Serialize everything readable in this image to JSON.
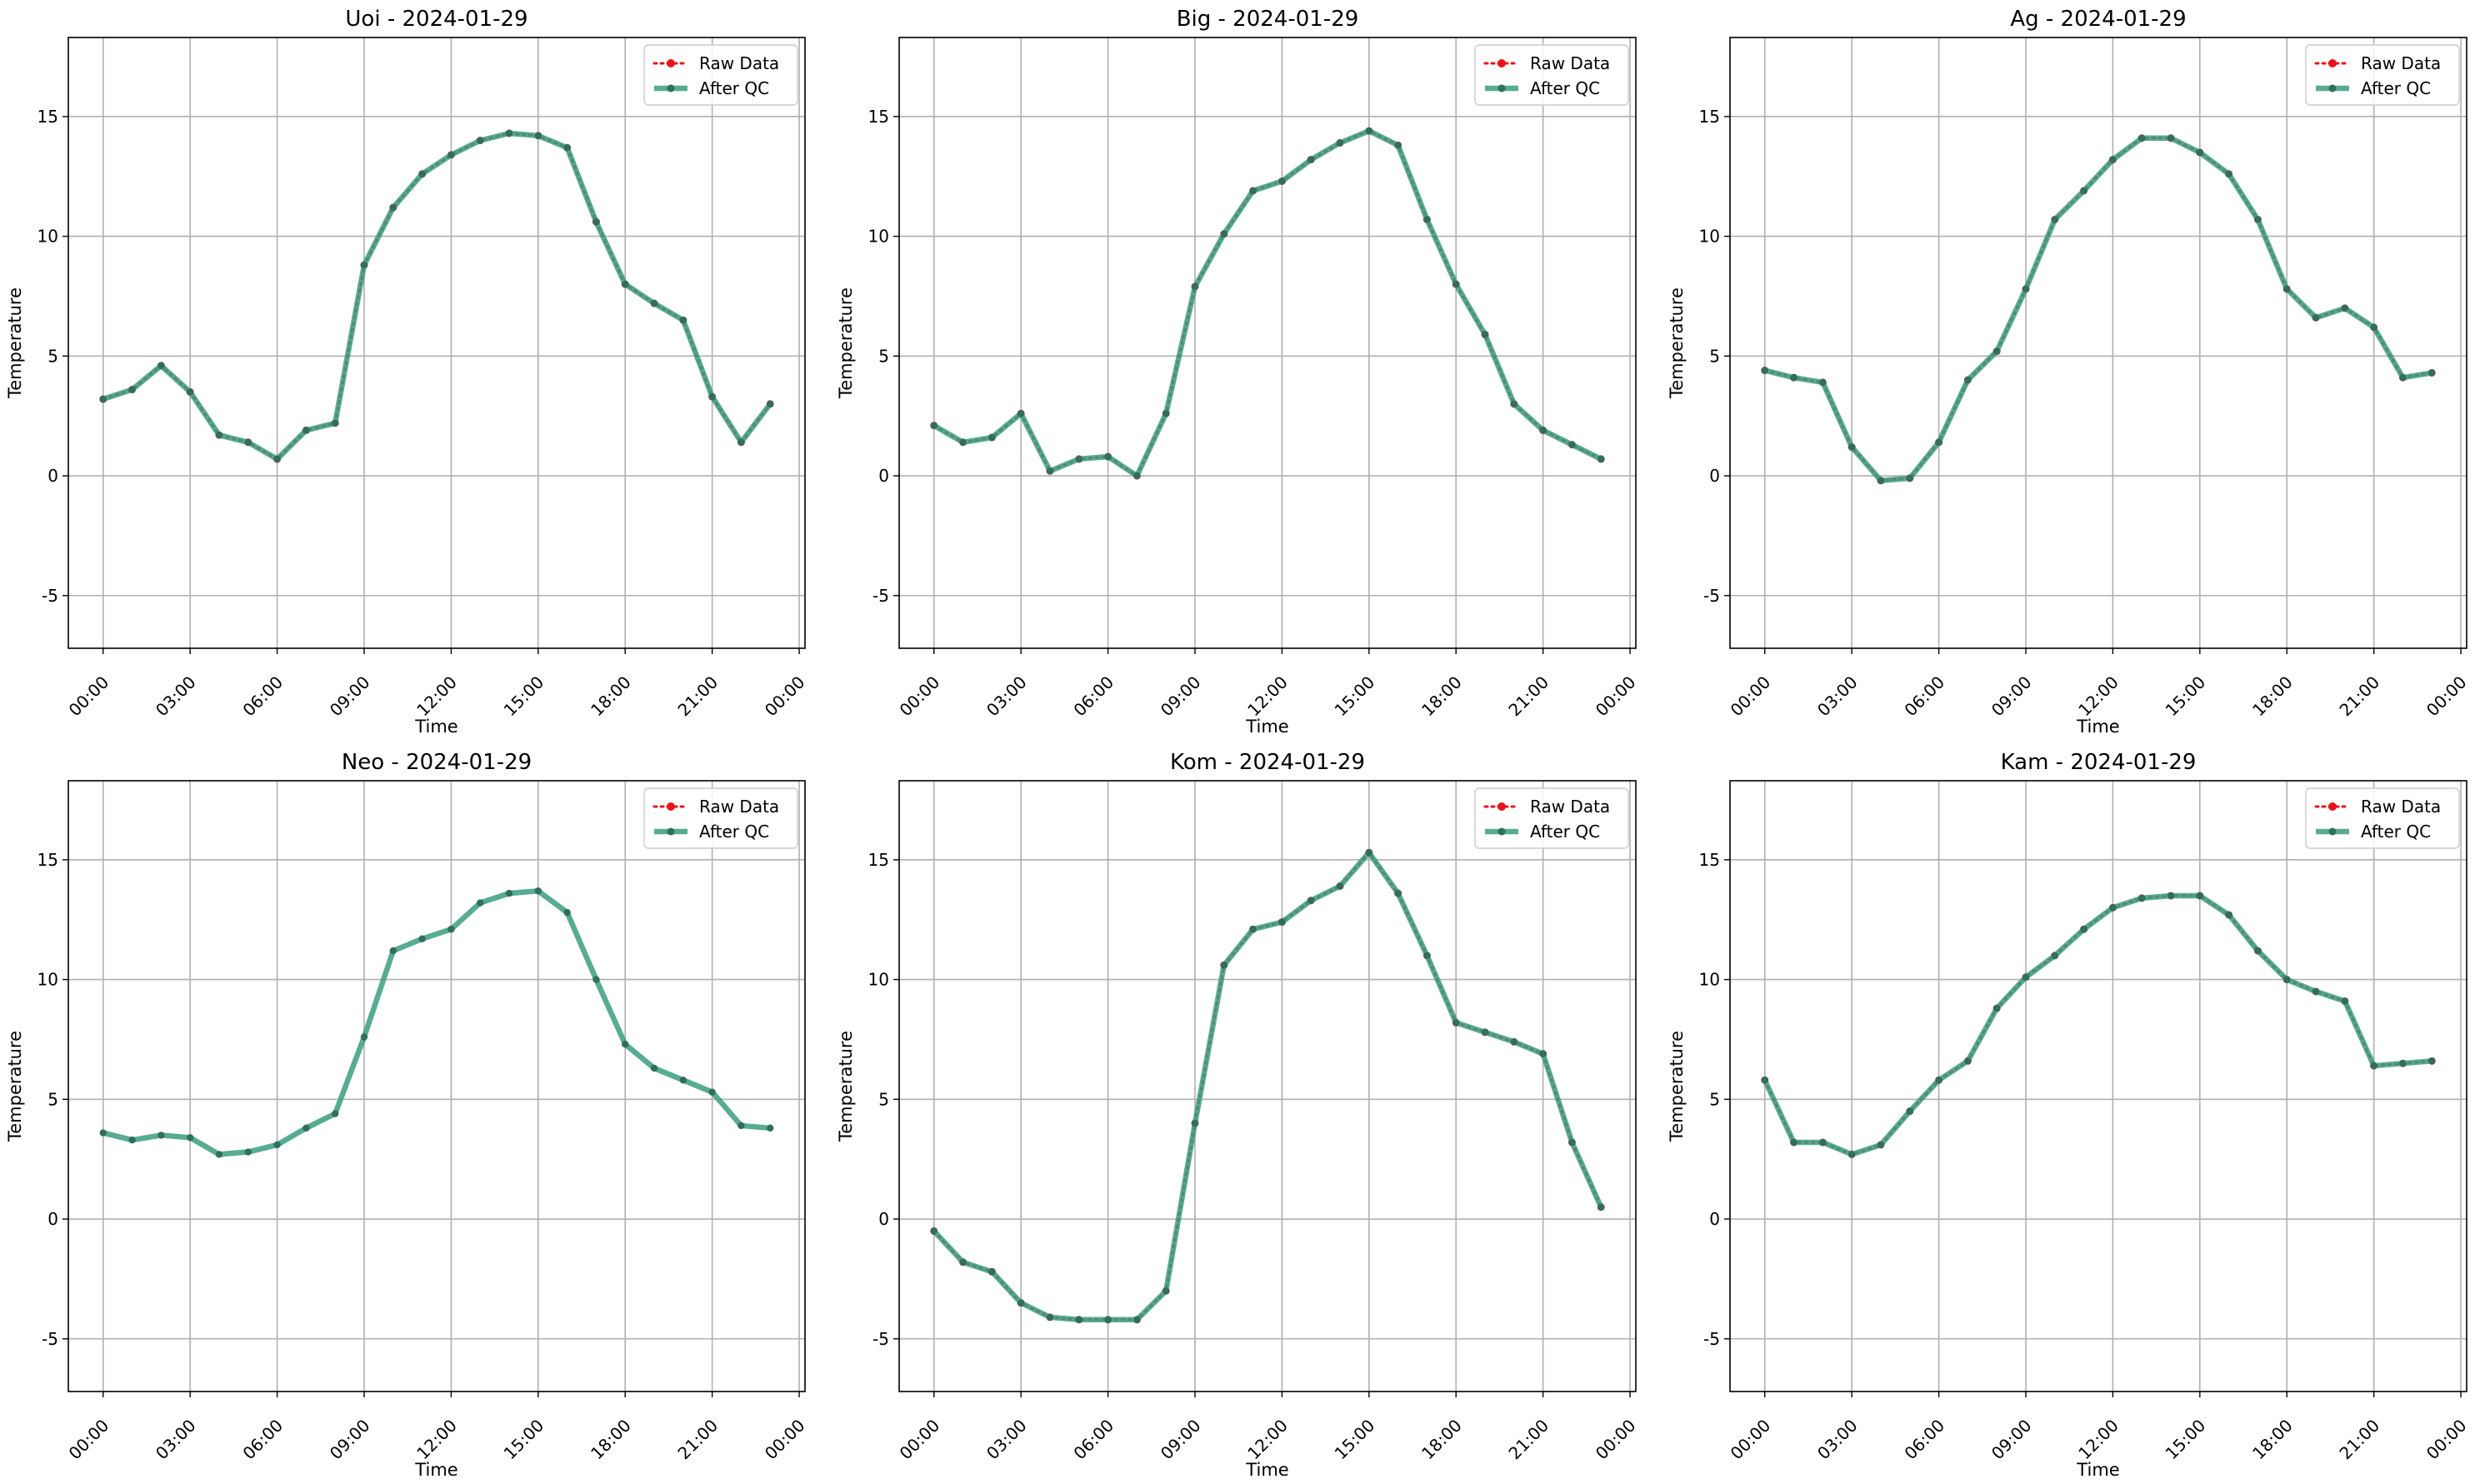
{
  "legend": {
    "raw_label": "Raw Data",
    "qc_label": "After QC",
    "placement": "upper-right"
  },
  "colors": {
    "raw": "#e8141b",
    "qc": "#3a9e7f",
    "qc_marker": "#2f6f5b",
    "grid": "#b0b0b0",
    "axis": "#000000"
  },
  "chart_data": [
    {
      "type": "line",
      "title": "Uoi - 2024-01-29",
      "xlabel": "Time",
      "ylabel": "Temperature",
      "xlim_hours": [
        -1.2,
        24.2
      ],
      "ylim": [
        -7.2,
        18.3
      ],
      "x_ticks": [
        "00:00",
        "03:00",
        "06:00",
        "09:00",
        "12:00",
        "15:00",
        "18:00",
        "21:00",
        "00:00"
      ],
      "y_ticks": [
        -5,
        0,
        5,
        10,
        15
      ],
      "grid": true,
      "legend_position": "upper-right",
      "raw_visible": true,
      "hours": [
        0,
        1,
        2,
        3,
        4,
        5,
        6,
        7,
        8,
        9,
        10,
        11,
        12,
        13,
        14,
        15,
        16,
        17,
        18,
        19,
        20,
        21,
        22,
        23
      ],
      "series": [
        {
          "name": "Raw Data",
          "values": [
            3.2,
            3.6,
            4.6,
            3.5,
            1.7,
            1.4,
            0.7,
            1.9,
            2.2,
            8.8,
            11.2,
            12.6,
            13.4,
            14.0,
            14.3,
            14.2,
            13.7,
            10.6,
            8.0,
            7.2,
            6.5,
            3.3,
            1.4,
            3.0
          ]
        },
        {
          "name": "After QC",
          "values": [
            3.2,
            3.6,
            4.6,
            3.5,
            1.7,
            1.4,
            0.7,
            1.9,
            2.2,
            8.8,
            11.2,
            12.6,
            13.4,
            14.0,
            14.3,
            14.2,
            13.7,
            10.6,
            8.0,
            7.2,
            6.5,
            3.3,
            1.4,
            3.0
          ]
        }
      ]
    },
    {
      "type": "line",
      "title": "Big - 2024-01-29",
      "xlabel": "Time",
      "ylabel": "Temperature",
      "xlim_hours": [
        -1.2,
        24.2
      ],
      "ylim": [
        -7.2,
        18.3
      ],
      "x_ticks": [
        "00:00",
        "03:00",
        "06:00",
        "09:00",
        "12:00",
        "15:00",
        "18:00",
        "21:00",
        "00:00"
      ],
      "y_ticks": [
        -5,
        0,
        5,
        10,
        15
      ],
      "grid": true,
      "legend_position": "upper-right",
      "raw_visible": true,
      "hours": [
        0,
        1,
        2,
        3,
        4,
        5,
        6,
        7,
        8,
        9,
        10,
        11,
        12,
        13,
        14,
        15,
        16,
        17,
        18,
        19,
        20,
        21,
        22,
        23
      ],
      "series": [
        {
          "name": "Raw Data",
          "values": [
            2.1,
            1.4,
            1.6,
            2.6,
            0.2,
            0.7,
            0.8,
            0.0,
            2.6,
            7.9,
            10.1,
            11.9,
            12.3,
            13.2,
            13.9,
            14.4,
            13.8,
            10.7,
            8.0,
            5.9,
            3.0,
            1.9,
            1.3,
            0.7
          ]
        },
        {
          "name": "After QC",
          "values": [
            2.1,
            1.4,
            1.6,
            2.6,
            0.2,
            0.7,
            0.8,
            0.0,
            2.6,
            7.9,
            10.1,
            11.9,
            12.3,
            13.2,
            13.9,
            14.4,
            13.8,
            10.7,
            8.0,
            5.9,
            3.0,
            1.9,
            1.3,
            0.7
          ]
        }
      ]
    },
    {
      "type": "line",
      "title": "Ag - 2024-01-29",
      "xlabel": "Time",
      "ylabel": "Temperature",
      "xlim_hours": [
        -1.2,
        24.2
      ],
      "ylim": [
        -7.2,
        18.3
      ],
      "x_ticks": [
        "00:00",
        "03:00",
        "06:00",
        "09:00",
        "12:00",
        "15:00",
        "18:00",
        "21:00",
        "00:00"
      ],
      "y_ticks": [
        -5,
        0,
        5,
        10,
        15
      ],
      "grid": true,
      "legend_position": "upper-right",
      "raw_visible": true,
      "hours": [
        0,
        1,
        2,
        3,
        4,
        5,
        6,
        7,
        8,
        9,
        10,
        11,
        12,
        13,
        14,
        15,
        16,
        17,
        18,
        19,
        20,
        21,
        22,
        23
      ],
      "series": [
        {
          "name": "Raw Data",
          "values": [
            4.4,
            4.1,
            3.9,
            1.2,
            -0.2,
            -0.1,
            1.4,
            4.0,
            5.2,
            7.8,
            10.7,
            11.9,
            13.2,
            14.1,
            14.1,
            13.5,
            12.6,
            10.7,
            7.8,
            6.6,
            7.0,
            6.2,
            4.1,
            4.3
          ]
        },
        {
          "name": "After QC",
          "values": [
            4.4,
            4.1,
            3.9,
            1.2,
            -0.2,
            -0.1,
            1.4,
            4.0,
            5.2,
            7.8,
            10.7,
            11.9,
            13.2,
            14.1,
            14.1,
            13.5,
            12.6,
            10.7,
            7.8,
            6.6,
            7.0,
            6.2,
            4.1,
            4.3
          ]
        }
      ]
    },
    {
      "type": "line",
      "title": "Neo - 2024-01-29",
      "xlabel": "Time",
      "ylabel": "Temperature",
      "xlim_hours": [
        -1.2,
        24.2
      ],
      "ylim": [
        -7.2,
        18.3
      ],
      "x_ticks": [
        "00:00",
        "03:00",
        "06:00",
        "09:00",
        "12:00",
        "15:00",
        "18:00",
        "21:00",
        "00:00"
      ],
      "y_ticks": [
        -5,
        0,
        5,
        10,
        15
      ],
      "grid": true,
      "legend_position": "upper-right",
      "raw_visible": false,
      "hours": [
        0,
        1,
        2,
        3,
        4,
        5,
        6,
        7,
        8,
        9,
        10,
        11,
        12,
        13,
        14,
        15,
        16,
        17,
        18,
        19,
        20,
        21,
        22,
        23
      ],
      "series": [
        {
          "name": "Raw Data",
          "values": [
            3.6,
            3.3,
            3.5,
            3.4,
            2.7,
            2.8,
            3.1,
            3.8,
            4.4,
            7.6,
            11.2,
            11.7,
            12.1,
            13.2,
            13.6,
            13.7,
            12.8,
            10.0,
            7.3,
            6.3,
            5.8,
            5.3,
            3.9,
            3.8
          ]
        },
        {
          "name": "After QC",
          "values": [
            3.6,
            3.3,
            3.5,
            3.4,
            2.7,
            2.8,
            3.1,
            3.8,
            4.4,
            7.6,
            11.2,
            11.7,
            12.1,
            13.2,
            13.6,
            13.7,
            12.8,
            10.0,
            7.3,
            6.3,
            5.8,
            5.3,
            3.9,
            3.8
          ]
        }
      ]
    },
    {
      "type": "line",
      "title": "Kom - 2024-01-29",
      "xlabel": "Time",
      "ylabel": "Temperature",
      "xlim_hours": [
        -1.2,
        24.2
      ],
      "ylim": [
        -7.2,
        18.3
      ],
      "x_ticks": [
        "00:00",
        "03:00",
        "06:00",
        "09:00",
        "12:00",
        "15:00",
        "18:00",
        "21:00",
        "00:00"
      ],
      "y_ticks": [
        -5,
        0,
        5,
        10,
        15
      ],
      "grid": true,
      "legend_position": "upper-right",
      "raw_visible": true,
      "hours": [
        0,
        1,
        2,
        3,
        4,
        5,
        6,
        7,
        8,
        9,
        10,
        11,
        12,
        13,
        14,
        15,
        16,
        17,
        18,
        19,
        20,
        21,
        22,
        23
      ],
      "series": [
        {
          "name": "Raw Data",
          "values": [
            -0.5,
            -1.8,
            -2.2,
            -3.5,
            -4.1,
            -4.2,
            -4.2,
            -4.2,
            -3.0,
            4.0,
            10.6,
            12.1,
            12.4,
            13.3,
            13.9,
            15.3,
            13.6,
            11.0,
            8.2,
            7.8,
            7.4,
            6.9,
            3.2,
            0.5
          ]
        },
        {
          "name": "After QC",
          "values": [
            -0.5,
            -1.8,
            -2.2,
            -3.5,
            -4.1,
            -4.2,
            -4.2,
            -4.2,
            -3.0,
            4.0,
            10.6,
            12.1,
            12.4,
            13.3,
            13.9,
            15.3,
            13.6,
            11.0,
            8.2,
            7.8,
            7.4,
            6.9,
            3.2,
            0.5
          ]
        }
      ]
    },
    {
      "type": "line",
      "title": "Kam - 2024-01-29",
      "xlabel": "Time",
      "ylabel": "Temperature",
      "xlim_hours": [
        -1.2,
        24.2
      ],
      "ylim": [
        -7.2,
        18.3
      ],
      "x_ticks": [
        "00:00",
        "03:00",
        "06:00",
        "09:00",
        "12:00",
        "15:00",
        "18:00",
        "21:00",
        "00:00"
      ],
      "y_ticks": [
        -5,
        0,
        5,
        10,
        15
      ],
      "grid": true,
      "legend_position": "upper-right",
      "raw_visible": true,
      "hours": [
        0,
        1,
        2,
        3,
        4,
        5,
        6,
        7,
        8,
        9,
        10,
        11,
        12,
        13,
        14,
        15,
        16,
        17,
        18,
        19,
        20,
        21,
        22,
        23
      ],
      "series": [
        {
          "name": "Raw Data",
          "values": [
            5.8,
            3.2,
            3.2,
            2.7,
            3.1,
            4.5,
            5.8,
            6.6,
            8.8,
            10.1,
            11.0,
            12.1,
            13.0,
            13.4,
            13.5,
            13.5,
            12.7,
            11.2,
            10.0,
            9.5,
            9.1,
            6.4,
            6.5,
            6.6
          ]
        },
        {
          "name": "After QC",
          "values": [
            5.8,
            3.2,
            3.2,
            2.7,
            3.1,
            4.5,
            5.8,
            6.6,
            8.8,
            10.1,
            11.0,
            12.1,
            13.0,
            13.4,
            13.5,
            13.5,
            12.7,
            11.2,
            10.0,
            9.5,
            9.1,
            6.4,
            6.5,
            6.6
          ]
        }
      ]
    }
  ]
}
